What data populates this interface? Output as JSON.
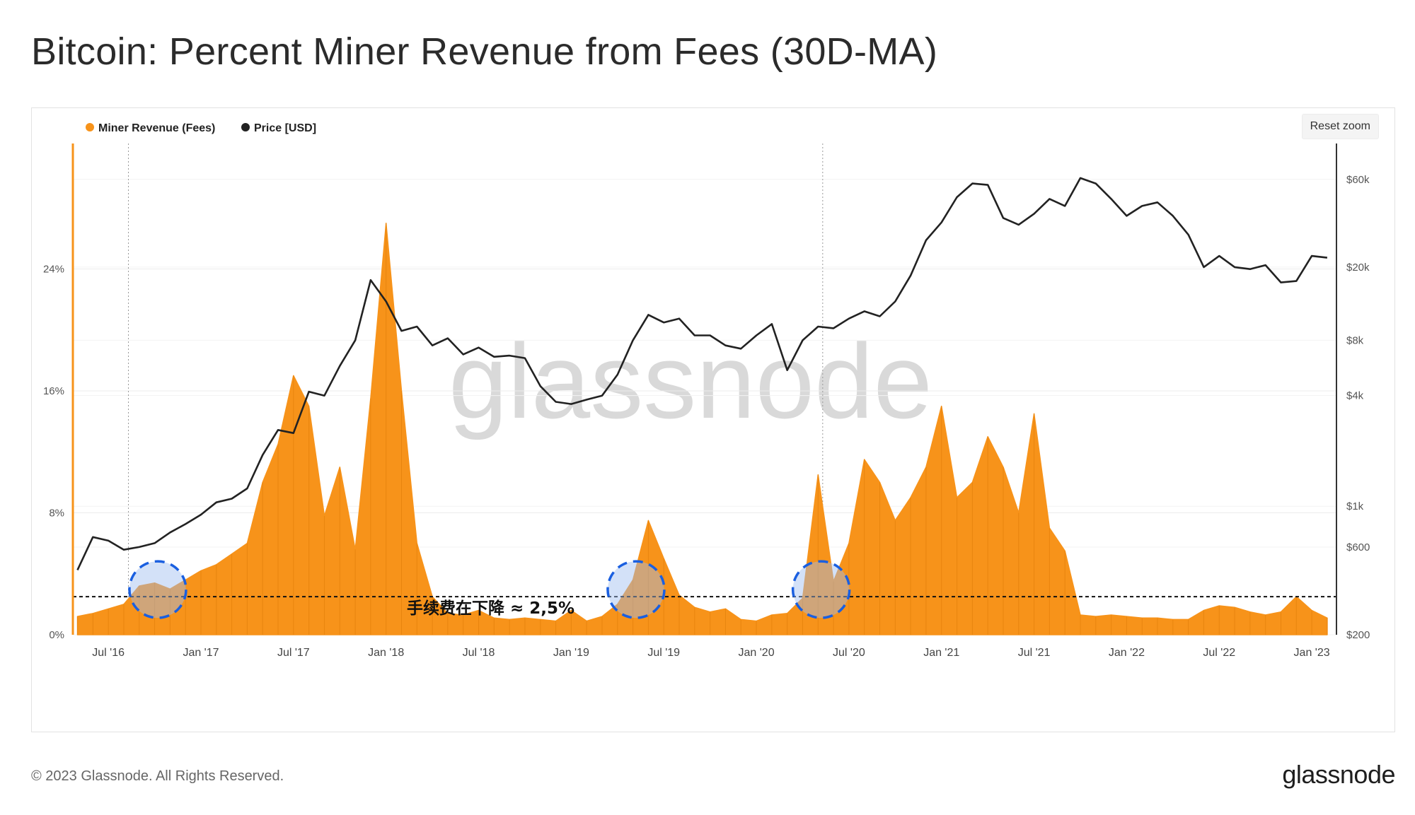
{
  "page": {
    "title": "Bitcoin: Percent Miner Revenue from Fees (30D-MA)",
    "copyright": "© 2023 Glassnode. All Rights Reserved.",
    "logo": "glassnode",
    "watermark": "glassnode"
  },
  "toolbar": {
    "reset_zoom_label": "Reset zoom"
  },
  "colors": {
    "fees": "#f7931a",
    "price": "#222222",
    "grid": "#ececec",
    "circle_stroke": "#1a5fe0",
    "circle_fill": "#9dbdf0"
  },
  "annotation": {
    "text": "手续费在下降 ≈ 2,5%",
    "reference_level_pct": 2.5,
    "highlighted_periods": [
      "2016-10",
      "2019-05",
      "2020-05"
    ]
  },
  "chart_data": {
    "type": "area",
    "title": "Bitcoin: Percent Miner Revenue from Fees (30D-MA)",
    "legend": {
      "placement": "top-left",
      "entries": [
        "Miner Revenue (Fees)",
        "Price [USD]"
      ]
    },
    "grid": true,
    "x_ticks": [
      "Jul '16",
      "Jan '17",
      "Jul '17",
      "Jan '18",
      "Jul '18",
      "Jan '19",
      "Jul '19",
      "Jan '20",
      "Jul '20",
      "Jan '21",
      "Jul '21",
      "Jan '22",
      "Jul '22",
      "Jan '23"
    ],
    "x_range": [
      "2016-05",
      "2023-02"
    ],
    "y_left": {
      "label": "",
      "unit": "%",
      "ticks": [
        "0%",
        "8%",
        "16%",
        "24%"
      ],
      "tick_values": [
        0,
        8,
        16,
        24
      ],
      "range": [
        0,
        32
      ]
    },
    "y_right": {
      "label": "",
      "scale": "log",
      "ticks": [
        "$200",
        "$600",
        "$1k",
        "$4k",
        "$8k",
        "$20k",
        "$60k"
      ],
      "tick_values": [
        200,
        600,
        1000,
        4000,
        8000,
        20000,
        60000
      ],
      "range": [
        200,
        90000
      ]
    },
    "reference_lines": [
      {
        "axis": "y_left",
        "value": 2.5,
        "style": "dotted"
      }
    ],
    "series": [
      {
        "name": "Miner Revenue (Fees)",
        "axis": "y_left",
        "kind": "area",
        "points": [
          [
            "2016-05",
            1.2
          ],
          [
            "2016-06",
            1.4
          ],
          [
            "2016-07",
            1.7
          ],
          [
            "2016-08",
            2.0
          ],
          [
            "2016-09",
            3.2
          ],
          [
            "2016-10",
            3.4
          ],
          [
            "2016-11",
            3.0
          ],
          [
            "2016-12",
            3.6
          ],
          [
            "2017-01",
            4.2
          ],
          [
            "2017-02",
            4.6
          ],
          [
            "2017-03",
            5.3
          ],
          [
            "2017-04",
            6.0
          ],
          [
            "2017-05",
            10.0
          ],
          [
            "2017-06",
            12.5
          ],
          [
            "2017-07",
            17.0
          ],
          [
            "2017-08",
            15.0
          ],
          [
            "2017-09",
            7.8
          ],
          [
            "2017-10",
            11.0
          ],
          [
            "2017-11",
            5.6
          ],
          [
            "2017-12",
            15.5
          ],
          [
            "2018-01",
            27.0
          ],
          [
            "2018-02",
            16.0
          ],
          [
            "2018-03",
            6.0
          ],
          [
            "2018-04",
            2.5
          ],
          [
            "2018-05",
            1.4
          ],
          [
            "2018-06",
            1.3
          ],
          [
            "2018-07",
            1.6
          ],
          [
            "2018-08",
            1.1
          ],
          [
            "2018-09",
            1.0
          ],
          [
            "2018-10",
            1.1
          ],
          [
            "2018-11",
            1.0
          ],
          [
            "2018-12",
            0.9
          ],
          [
            "2019-01",
            1.6
          ],
          [
            "2019-02",
            0.9
          ],
          [
            "2019-03",
            1.2
          ],
          [
            "2019-04",
            2.0
          ],
          [
            "2019-05",
            3.6
          ],
          [
            "2019-06",
            7.5
          ],
          [
            "2019-07",
            5.0
          ],
          [
            "2019-08",
            2.6
          ],
          [
            "2019-09",
            1.8
          ],
          [
            "2019-10",
            1.5
          ],
          [
            "2019-11",
            1.7
          ],
          [
            "2019-12",
            1.0
          ],
          [
            "2020-01",
            0.9
          ],
          [
            "2020-02",
            1.3
          ],
          [
            "2020-03",
            1.4
          ],
          [
            "2020-04",
            2.4
          ],
          [
            "2020-05",
            10.5
          ],
          [
            "2020-06",
            3.5
          ],
          [
            "2020-07",
            6.0
          ],
          [
            "2020-08",
            11.5
          ],
          [
            "2020-09",
            10.0
          ],
          [
            "2020-10",
            7.5
          ],
          [
            "2020-11",
            9.0
          ],
          [
            "2020-12",
            11.0
          ],
          [
            "2021-01",
            15.0
          ],
          [
            "2021-02",
            9.0
          ],
          [
            "2021-03",
            10.0
          ],
          [
            "2021-04",
            13.0
          ],
          [
            "2021-05",
            11.0
          ],
          [
            "2021-06",
            8.0
          ],
          [
            "2021-07",
            14.5
          ],
          [
            "2021-08",
            7.0
          ],
          [
            "2021-09",
            5.5
          ],
          [
            "2021-10",
            1.3
          ],
          [
            "2021-11",
            1.2
          ],
          [
            "2021-12",
            1.3
          ],
          [
            "2022-01",
            1.2
          ],
          [
            "2022-02",
            1.1
          ],
          [
            "2022-03",
            1.1
          ],
          [
            "2022-04",
            1.0
          ],
          [
            "2022-05",
            1.0
          ],
          [
            "2022-06",
            1.6
          ],
          [
            "2022-07",
            1.9
          ],
          [
            "2022-08",
            1.8
          ],
          [
            "2022-09",
            1.5
          ],
          [
            "2022-10",
            1.3
          ],
          [
            "2022-11",
            1.5
          ],
          [
            "2022-12",
            2.5
          ],
          [
            "2023-01",
            1.6
          ],
          [
            "2023-02",
            1.1
          ]
        ]
      },
      {
        "name": "Price [USD]",
        "axis": "y_right",
        "kind": "line",
        "points": [
          [
            "2016-05",
            450
          ],
          [
            "2016-06",
            680
          ],
          [
            "2016-07",
            650
          ],
          [
            "2016-08",
            580
          ],
          [
            "2016-09",
            600
          ],
          [
            "2016-10",
            630
          ],
          [
            "2016-11",
            720
          ],
          [
            "2016-12",
            800
          ],
          [
            "2017-01",
            900
          ],
          [
            "2017-02",
            1050
          ],
          [
            "2017-03",
            1100
          ],
          [
            "2017-04",
            1250
          ],
          [
            "2017-05",
            1900
          ],
          [
            "2017-06",
            2600
          ],
          [
            "2017-07",
            2500
          ],
          [
            "2017-08",
            4200
          ],
          [
            "2017-09",
            4000
          ],
          [
            "2017-10",
            5800
          ],
          [
            "2017-11",
            8000
          ],
          [
            "2017-12",
            17000
          ],
          [
            "2018-01",
            13000
          ],
          [
            "2018-02",
            9000
          ],
          [
            "2018-03",
            9500
          ],
          [
            "2018-04",
            7500
          ],
          [
            "2018-05",
            8200
          ],
          [
            "2018-06",
            6700
          ],
          [
            "2018-07",
            7300
          ],
          [
            "2018-08",
            6500
          ],
          [
            "2018-09",
            6600
          ],
          [
            "2018-10",
            6400
          ],
          [
            "2018-11",
            4500
          ],
          [
            "2018-12",
            3700
          ],
          [
            "2019-01",
            3600
          ],
          [
            "2019-02",
            3800
          ],
          [
            "2019-03",
            4000
          ],
          [
            "2019-04",
            5200
          ],
          [
            "2019-05",
            8000
          ],
          [
            "2019-06",
            11000
          ],
          [
            "2019-07",
            10000
          ],
          [
            "2019-08",
            10500
          ],
          [
            "2019-09",
            8500
          ],
          [
            "2019-10",
            8500
          ],
          [
            "2019-11",
            7500
          ],
          [
            "2019-12",
            7200
          ],
          [
            "2020-01",
            8500
          ],
          [
            "2020-02",
            9800
          ],
          [
            "2020-03",
            5500
          ],
          [
            "2020-04",
            8000
          ],
          [
            "2020-05",
            9500
          ],
          [
            "2020-06",
            9300
          ],
          [
            "2020-07",
            10500
          ],
          [
            "2020-08",
            11500
          ],
          [
            "2020-09",
            10800
          ],
          [
            "2020-10",
            13000
          ],
          [
            "2020-11",
            18000
          ],
          [
            "2020-12",
            28000
          ],
          [
            "2021-01",
            35000
          ],
          [
            "2021-02",
            48000
          ],
          [
            "2021-03",
            57000
          ],
          [
            "2021-04",
            56000
          ],
          [
            "2021-05",
            37000
          ],
          [
            "2021-06",
            34000
          ],
          [
            "2021-07",
            39000
          ],
          [
            "2021-08",
            47000
          ],
          [
            "2021-09",
            43000
          ],
          [
            "2021-10",
            61000
          ],
          [
            "2021-11",
            57000
          ],
          [
            "2021-12",
            47000
          ],
          [
            "2022-01",
            38000
          ],
          [
            "2022-02",
            43000
          ],
          [
            "2022-03",
            45000
          ],
          [
            "2022-04",
            38000
          ],
          [
            "2022-05",
            30000
          ],
          [
            "2022-06",
            20000
          ],
          [
            "2022-07",
            23000
          ],
          [
            "2022-08",
            20000
          ],
          [
            "2022-09",
            19500
          ],
          [
            "2022-10",
            20500
          ],
          [
            "2022-11",
            16500
          ],
          [
            "2022-12",
            16800
          ],
          [
            "2023-01",
            23000
          ],
          [
            "2023-02",
            22500
          ]
        ]
      }
    ]
  }
}
